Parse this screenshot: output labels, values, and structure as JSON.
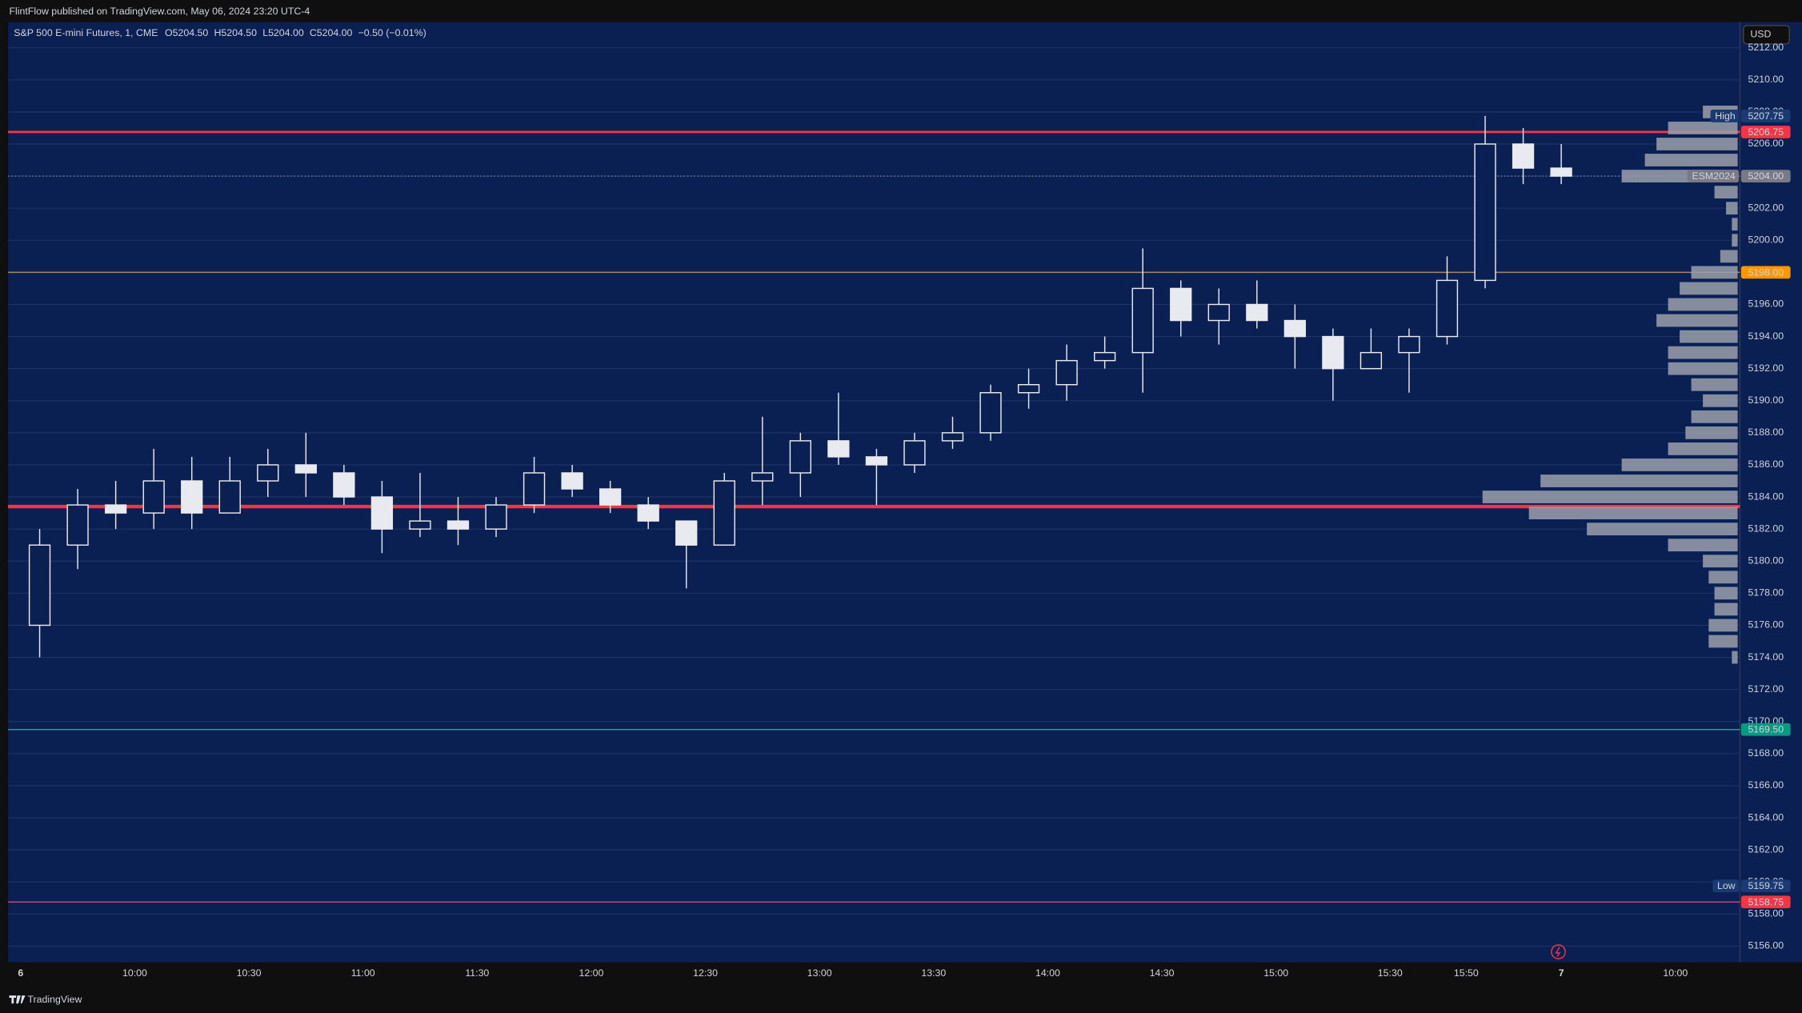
{
  "header": {
    "text": "FlintFlow published on TradingView.com, May 06, 2024 23:20 UTC-4"
  },
  "chart_data": {
    "type": "candlestick",
    "title": "S&P 500 E-mini Futures, 1, CME",
    "legend": {
      "labels": [
        "O",
        "H",
        "L",
        "C"
      ],
      "values": [
        5204.5,
        5204.5,
        5204,
        5204
      ],
      "value_labels": [
        "5204.50",
        "5204.50",
        "5204.00",
        "5204.00"
      ],
      "change": "−0.50 (−0.01%)"
    },
    "currency": "USD",
    "x": [
      "09:30",
      "09:40",
      "09:50",
      "10:00",
      "10:10",
      "10:20",
      "10:30",
      "10:40",
      "10:50",
      "11:00",
      "11:10",
      "11:20",
      "11:30",
      "11:40",
      "11:50",
      "12:00",
      "12:10",
      "12:20",
      "12:30",
      "12:40",
      "12:50",
      "13:00",
      "13:10",
      "13:20",
      "13:30",
      "13:40",
      "13:50",
      "14:00",
      "14:10",
      "14:20",
      "14:30",
      "14:40",
      "14:50",
      "15:00",
      "15:10",
      "15:20",
      "15:30",
      "15:40",
      "15:50",
      "16:00",
      "16:10"
    ],
    "open": [
      5176,
      5181,
      5183.5,
      5183,
      5185,
      5183,
      5185,
      5186,
      5185.5,
      5184,
      5182,
      5182.5,
      5182,
      5183.5,
      5185.5,
      5184.5,
      5183.5,
      5182.5,
      5181,
      5185,
      5185.5,
      5187.5,
      5186.5,
      5186,
      5187.5,
      5188,
      5190.5,
      5191,
      5192.5,
      5193,
      5197,
      5195,
      5196,
      5195,
      5194,
      5192,
      5193,
      5194,
      5197.5,
      5206,
      5204.5
    ],
    "high": [
      5182,
      5184.5,
      5185,
      5187,
      5186.5,
      5186.5,
      5187,
      5188,
      5186,
      5185,
      5185.5,
      5184,
      5184,
      5186.5,
      5186,
      5185,
      5184,
      5182.5,
      5185.5,
      5189,
      5188,
      5190.5,
      5187,
      5188,
      5189,
      5191,
      5192,
      5193.5,
      5194,
      5199.5,
      5197.5,
      5197,
      5197.5,
      5196,
      5194.5,
      5194.5,
      5194.5,
      5199,
      5207.75,
      5207,
      5206
    ],
    "low": [
      5174,
      5179.5,
      5182,
      5182,
      5182,
      5183,
      5184,
      5184,
      5183.5,
      5180.5,
      5181.5,
      5181,
      5181.5,
      5183,
      5184,
      5183,
      5182,
      5178.3,
      5181,
      5183.5,
      5184,
      5186,
      5183.5,
      5185.5,
      5187,
      5187.5,
      5189.5,
      5190,
      5192,
      5190.5,
      5194,
      5193.5,
      5194.5,
      5192,
      5190,
      5192,
      5190.5,
      5193.5,
      5197,
      5203.5,
      5203.5
    ],
    "close": [
      5181,
      5183.5,
      5183,
      5185,
      5183,
      5185,
      5186,
      5185.5,
      5184,
      5182,
      5182.5,
      5182,
      5183.5,
      5185.5,
      5184.5,
      5183.5,
      5182.5,
      5181,
      5185,
      5185.5,
      5187.5,
      5186.5,
      5186,
      5187.5,
      5188,
      5190.5,
      5191,
      5192.5,
      5193,
      5197,
      5195,
      5196,
      5195,
      5194,
      5192,
      5193,
      5194,
      5197.5,
      5206,
      5204.5,
      5204
    ],
    "candle_color": "#e8eaf0",
    "xticks": [
      {
        "value": "09:30",
        "label": "6"
      },
      "10:00",
      "10:30",
      "11:00",
      "11:30",
      "12:00",
      "12:30",
      "13:00",
      "13:30",
      "14:00",
      "14:30",
      "15:00",
      "15:30",
      "15:50",
      {
        "value": "16:15",
        "label": "7"
      },
      {
        "value": "16:45",
        "label": "10:00"
      }
    ],
    "ylim": [
      5155,
      5213.6
    ],
    "yticks": [
      {
        "value": 5156,
        "label": "5156.00"
      },
      {
        "value": 5158,
        "label": "5158.00"
      },
      {
        "value": 5160,
        "label": "5160.00"
      },
      {
        "value": 5162,
        "label": "5162.00"
      },
      {
        "value": 5164,
        "label": "5164.00"
      },
      {
        "value": 5166,
        "label": "5166.00"
      },
      {
        "value": 5168,
        "label": "5168.00"
      },
      {
        "value": 5170,
        "label": "5170.00"
      },
      {
        "value": 5172,
        "label": "5172.00"
      },
      {
        "value": 5174,
        "label": "5174.00"
      },
      {
        "value": 5176,
        "label": "5176.00"
      },
      {
        "value": 5178,
        "label": "5178.00"
      },
      {
        "value": 5180,
        "label": "5180.00"
      },
      {
        "value": 5182,
        "label": "5182.00"
      },
      {
        "value": 5184,
        "label": "5184.00"
      },
      {
        "value": 5186,
        "label": "5186.00"
      },
      {
        "value": 5188,
        "label": "5188.00"
      },
      {
        "value": 5190,
        "label": "5190.00"
      },
      {
        "value": 5192,
        "label": "5192.00"
      },
      {
        "value": 5194,
        "label": "5194.00"
      },
      {
        "value": 5196,
        "label": "5196.00"
      },
      {
        "value": 5198,
        "label": "5198.00"
      },
      {
        "value": 5200,
        "label": "5200.00"
      },
      {
        "value": 5202,
        "label": "5202.00"
      },
      {
        "value": 5204,
        "label": "5204.00"
      },
      {
        "value": 5206,
        "label": "5206.00"
      },
      {
        "value": 5208,
        "label": "5208.00"
      },
      {
        "value": 5210,
        "label": "5210.00"
      },
      {
        "value": 5212,
        "label": "5212.00"
      }
    ],
    "grid": true,
    "levels": [
      {
        "value": 5206.75,
        "label": "5206.75",
        "color": "#f23645",
        "text_color": "#ffffff",
        "style": "thick"
      },
      {
        "value": 5183.4,
        "color": "#f23645",
        "style": "heavy"
      },
      {
        "value": 5198,
        "label": "5198.00",
        "color": "#ff9800",
        "line_color": "#a88a5a",
        "text_color": "#000000",
        "style": "thin"
      },
      {
        "value": 5204,
        "label": "5204.00",
        "tag": "ESM2024",
        "color": "#787b86",
        "text_color": "#ffffff",
        "style": "dotted"
      },
      {
        "value": 5169.5,
        "label": "5169.50",
        "color": "#089981",
        "line_color": "#3a8f9a",
        "text_color": "#ffffff",
        "style": "thin"
      },
      {
        "value": 5158.75,
        "label": "5158.75",
        "color": "#f23645",
        "line_color": "#c0507a",
        "text_color": "#ffffff",
        "style": "thin"
      },
      {
        "value": 5207.75,
        "label": "5207.75",
        "tag": "High",
        "color": "#1c3a72",
        "text_color": "#ffffff",
        "style": "none"
      },
      {
        "value": 5159.75,
        "label": "5159.75",
        "tag": "Low",
        "color": "#1c3a72",
        "text_color": "#ffffff",
        "style": "none"
      }
    ],
    "profile": {
      "color": "#9aa0ab",
      "prices": [
        5208,
        5207,
        5206,
        5205,
        5204,
        5203,
        5202,
        5201,
        5200,
        5199,
        5198,
        5197,
        5196,
        5195,
        5194,
        5193,
        5192,
        5191,
        5190,
        5189,
        5188,
        5187,
        5186,
        5185,
        5184,
        5183,
        5182,
        5181,
        5180,
        5179,
        5178,
        5177,
        5176,
        5175,
        5174
      ],
      "volumes": [
        30,
        60,
        70,
        80,
        100,
        20,
        10,
        5,
        5,
        15,
        40,
        50,
        60,
        70,
        50,
        60,
        60,
        40,
        30,
        40,
        45,
        60,
        100,
        170,
        220,
        180,
        130,
        60,
        30,
        25,
        20,
        20,
        25,
        25,
        5
      ]
    }
  },
  "footer": {
    "brand": "TradingView"
  }
}
